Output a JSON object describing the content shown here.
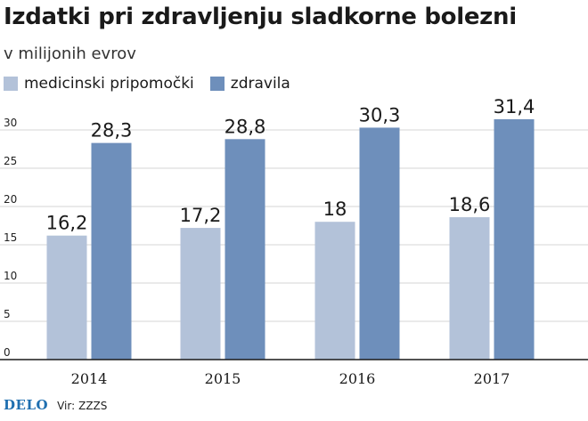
{
  "chart_data": {
    "type": "bar",
    "title": "Izdatki pri zdravljenju sladkorne bolezni",
    "subtitle": "v milijonih evrov",
    "categories": [
      "2014",
      "2015",
      "2016",
      "2017"
    ],
    "series": [
      {
        "name": "medicinski pripomočki",
        "values": [
          16.2,
          17.2,
          18,
          18.6
        ],
        "labels": [
          "16,2",
          "17,2",
          "18",
          "18,6"
        ],
        "color": "#b3c2d9"
      },
      {
        "name": "zdravila",
        "values": [
          28.3,
          28.8,
          30.3,
          31.4
        ],
        "labels": [
          "28,3",
          "28,8",
          "30,3",
          "31,4"
        ],
        "color": "#6e8fbb"
      }
    ],
    "ylim": [
      0,
      30
    ],
    "yticks": [
      0,
      5,
      10,
      15,
      20,
      25,
      30
    ],
    "grid": true,
    "legend": "top-left"
  },
  "footer": {
    "brand": "DELO",
    "source_label": "Vir:",
    "source_value": "ZZZS"
  }
}
